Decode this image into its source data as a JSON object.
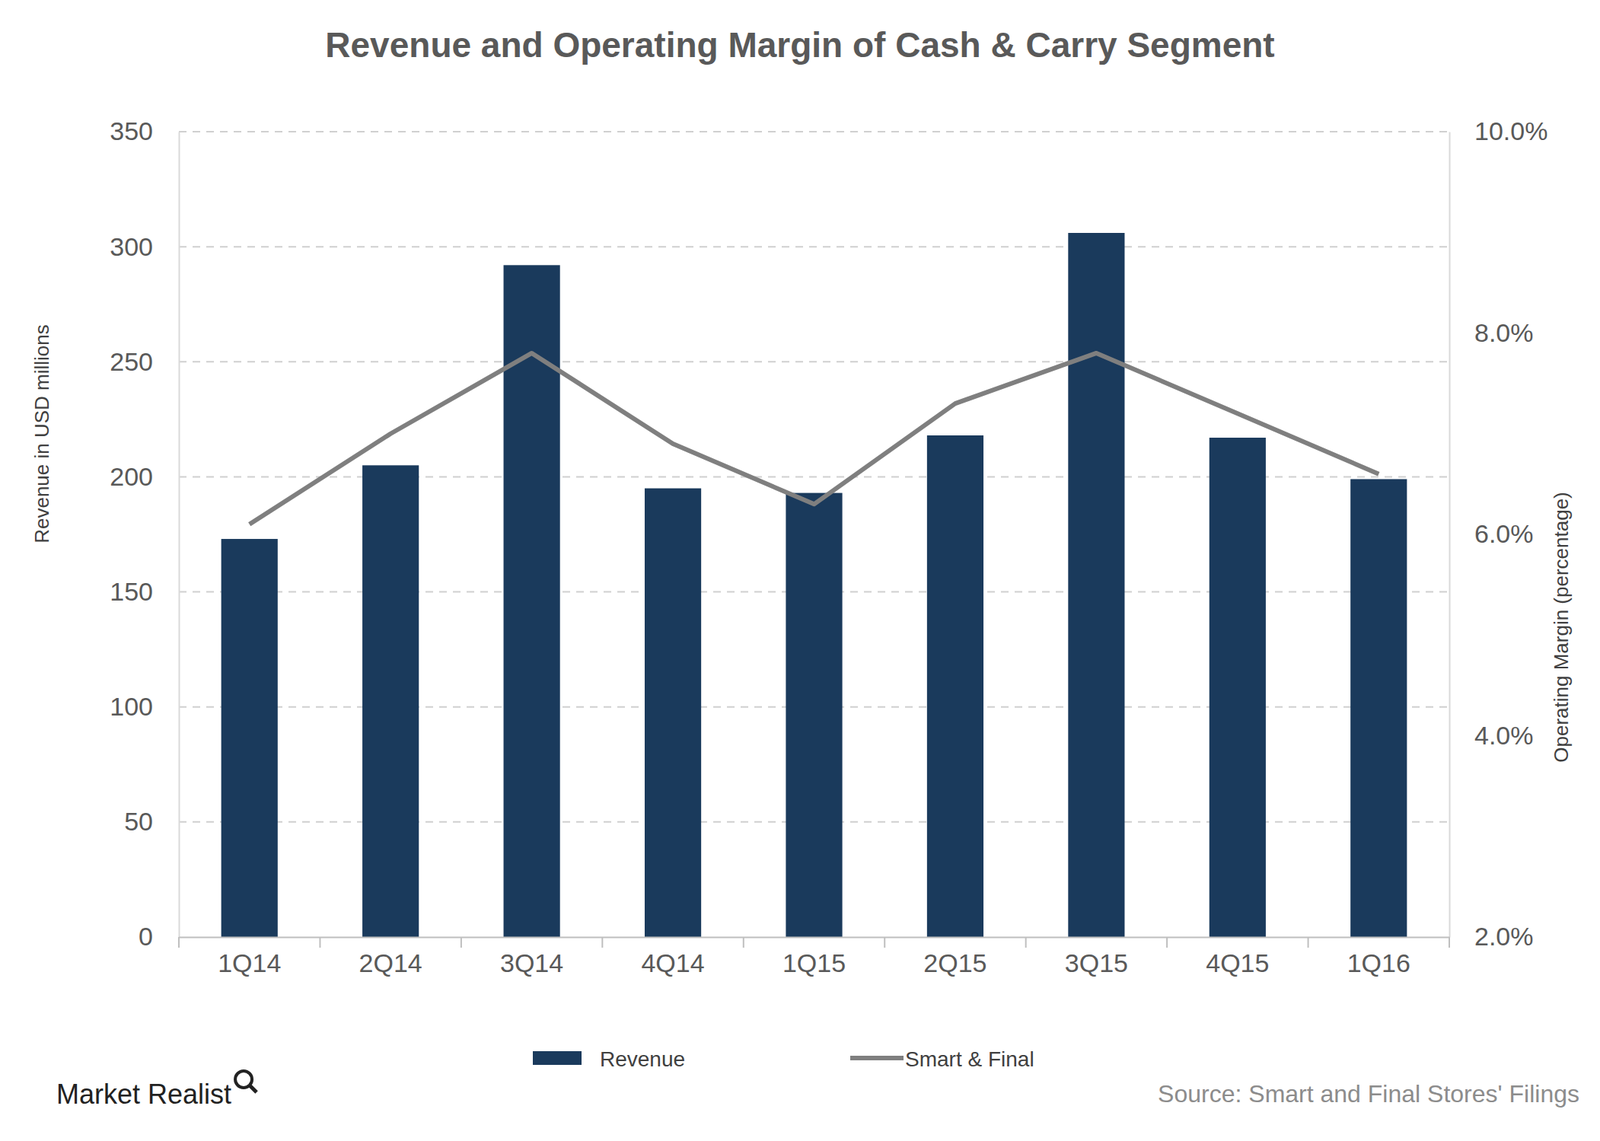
{
  "chart_data": {
    "type": "bar",
    "title": "Revenue and Operating Margin of Cash & Carry Segment",
    "y_label": "Revenue in USD millions",
    "y2_label": "Operating Margin (percentage)",
    "categories": [
      "1Q14",
      "2Q14",
      "3Q14",
      "4Q14",
      "1Q15",
      "2Q15",
      "3Q15",
      "4Q15",
      "1Q16"
    ],
    "series": [
      {
        "name": "Revenue",
        "type": "bar",
        "color": "#1a3a5c",
        "values": [
          173,
          205,
          292,
          195,
          193,
          218,
          306,
          217,
          199
        ]
      },
      {
        "name": "Smart & Final",
        "type": "line",
        "axis": "y2",
        "color": "#7f7f7f",
        "values": [
          6.1,
          7.0,
          7.8,
          6.9,
          6.3,
          7.3,
          7.8,
          7.2,
          6.6
        ]
      }
    ],
    "ylim": [
      0,
      350
    ],
    "yticks": [
      0,
      50,
      100,
      150,
      200,
      250,
      300,
      350
    ],
    "y2lim": [
      2,
      10
    ],
    "y2ticks": [
      {
        "value": 2,
        "label": "2.0%"
      },
      {
        "value": 4,
        "label": "4.0%"
      },
      {
        "value": 6,
        "label": "6.0%"
      },
      {
        "value": 8,
        "label": "8.0%"
      },
      {
        "value": 10,
        "label": "10.0%"
      }
    ],
    "grid": true,
    "legend": "bottom",
    "annotations": [
      "Source: Smart and Final Stores' Filings",
      "Market Realist"
    ]
  }
}
